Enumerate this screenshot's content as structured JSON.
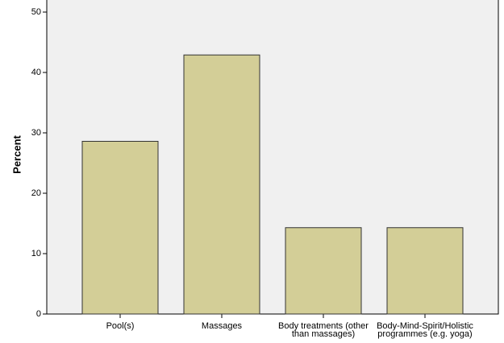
{
  "chart_data": {
    "type": "bar",
    "y_label": "Percent",
    "categories": [
      "Pool(s)",
      "Massages",
      "Body treatments (other than massages)",
      "Body-Mind-Spirit/Holistic programmes (e.g. yoga)"
    ],
    "values": [
      28.6,
      42.9,
      14.3,
      14.3
    ],
    "color": "#d3ce97",
    "ylim": [
      0,
      52
    ],
    "yticks": [
      0,
      10,
      20,
      30,
      40,
      50
    ],
    "grid": false
  }
}
